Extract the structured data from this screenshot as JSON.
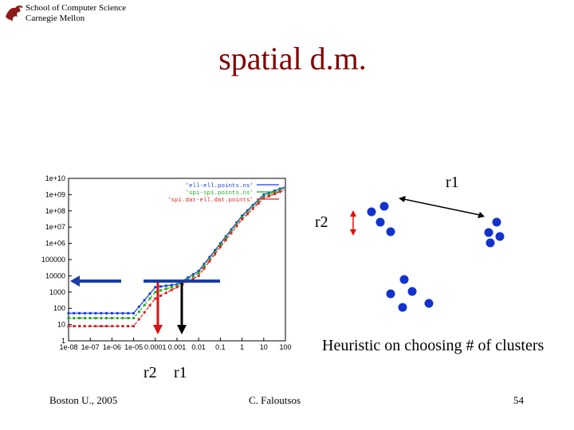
{
  "header": {
    "org_line1": "School of Computer Science",
    "org_line2": "Carnegie Mellon",
    "logo_icon": "cmu-dragon-logo-icon"
  },
  "slide": {
    "title": "spatial d.m.",
    "heuristic_text": "Heuristic on choosing # of clusters",
    "plot_label_r2": "r2",
    "plot_label_r1": "r1",
    "diagram_label_r1": "r1",
    "diagram_label_r2": "r2"
  },
  "footer": {
    "left": "Boston U., 2005",
    "center": "C. Faloutsos",
    "page": "54"
  },
  "colors": {
    "title": "#800000",
    "arrow_blue": "#1a3da6",
    "marker_red": "#cc1111",
    "dot_blue": "#1133cc"
  },
  "chart_data": {
    "type": "line",
    "title": "",
    "xlabel": "",
    "ylabel": "",
    "x_scale": "log",
    "y_scale": "log",
    "xlim": [
      1e-08,
      100
    ],
    "ylim": [
      1,
      10000000000.0
    ],
    "x_tick_labels": [
      "1e-08",
      "1e-07",
      "1e-06",
      "1e-05",
      "0.0001",
      "0.001",
      "0.01",
      "0.1",
      "1",
      "10",
      "100"
    ],
    "y_tick_labels": [
      "1",
      "10",
      "100",
      "1000",
      "10000",
      "100000",
      "1e+06",
      "1e+07",
      "1e+08",
      "1e+09",
      "1e+10"
    ],
    "legend_position": "top-right",
    "x": [
      1e-08,
      1e-07,
      1e-06,
      1e-05,
      0.0001,
      0.001,
      0.01,
      0.1,
      1,
      10,
      100
    ],
    "series": [
      {
        "name": "'ell-ell.points.ns'",
        "color": "#1f3fd0",
        "values": [
          50,
          50,
          50,
          50,
          2000,
          3000,
          20000,
          1000000,
          50000000,
          1000000000,
          3000000000
        ]
      },
      {
        "name": "'spi-spi.points.ns'",
        "color": "#22aa22",
        "values": [
          25,
          25,
          25,
          25,
          1000,
          2500,
          15000,
          800000,
          40000000,
          800000000,
          2500000000
        ]
      },
      {
        "name": "'spi.dat-ell.dat.points'",
        "color": "#dd2222",
        "values": [
          8,
          8,
          8,
          8,
          400,
          2000,
          10000,
          600000,
          30000000,
          600000000,
          2000000000
        ]
      }
    ]
  }
}
